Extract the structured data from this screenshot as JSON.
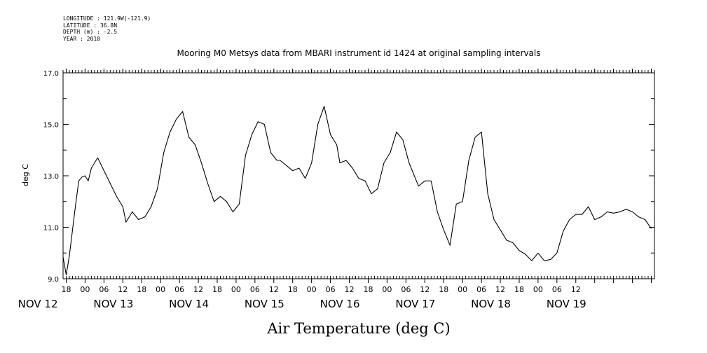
{
  "meta_lines": [
    "LONGITUDE : 121.9W(-121.9)",
    "LATITUDE : 36.8N",
    "DEPTH (m) : -2.5",
    "YEAR : 2010"
  ],
  "chart_data": {
    "type": "line",
    "title": "Mooring M0 Metsys data from MBARI instrument id 1424 at original sampling intervals",
    "xlabel": "Air Temperature (deg C)",
    "ylabel": "deg C",
    "ylim": [
      9.0,
      17.0
    ],
    "yticks": [
      "9.0",
      "11.0",
      "13.0",
      "15.0",
      "17.0"
    ],
    "x_unit": "hours since Nov 12 00:00",
    "xlim": [
      11,
      199
    ],
    "hour_tick_labels": [
      "18",
      "00",
      "06",
      "12",
      "18",
      "00",
      "06",
      "12",
      "18",
      "00",
      "06",
      "12",
      "18",
      "00",
      "06",
      "12",
      "18",
      "00",
      "06",
      "12",
      "18",
      "00",
      "06",
      "12",
      "18",
      "00",
      "06",
      "12"
    ],
    "day_labels": [
      "NOV 12",
      "NOV 13",
      "NOV 14",
      "NOV 15",
      "NOV 16",
      "NOV 17",
      "NOV 18",
      "NOV 19"
    ],
    "grid": false,
    "series": [
      {
        "color": "#000000",
        "x": [
          11,
          12,
          13,
          14,
          15,
          16,
          17,
          18,
          19,
          20,
          21,
          22,
          24,
          26,
          28,
          30,
          31,
          33,
          35,
          37,
          39,
          41,
          43,
          45,
          47,
          49,
          51,
          53,
          55,
          57,
          59,
          61,
          63,
          65,
          67,
          69,
          71,
          73,
          75,
          77,
          79,
          80,
          82,
          84,
          86,
          88,
          90,
          92,
          94,
          96,
          98,
          99,
          101,
          103,
          105,
          107,
          109,
          111,
          113,
          115,
          117,
          119,
          121,
          123,
          124,
          126,
          128,
          130,
          132,
          134,
          136,
          138,
          140,
          142,
          144,
          146,
          148,
          150,
          152,
          154,
          156,
          158,
          160,
          162,
          164,
          166,
          168,
          170,
          172,
          174,
          176,
          178,
          180,
          182,
          184,
          186,
          188,
          190,
          192,
          194,
          196,
          198
        ],
        "y": [
          9.85,
          9.15,
          9.9,
          10.9,
          11.9,
          12.8,
          12.95,
          13.0,
          12.8,
          13.3,
          13.5,
          13.7,
          13.2,
          12.7,
          12.2,
          11.8,
          11.2,
          11.6,
          11.3,
          11.4,
          11.8,
          12.5,
          13.9,
          14.7,
          15.2,
          15.5,
          14.5,
          14.2,
          13.5,
          12.7,
          12.0,
          12.2,
          12.0,
          11.6,
          11.9,
          13.8,
          14.6,
          15.1,
          15.0,
          13.9,
          13.6,
          13.6,
          13.4,
          13.2,
          13.3,
          12.9,
          13.5,
          15.0,
          15.7,
          14.6,
          14.2,
          13.5,
          13.6,
          13.3,
          12.9,
          12.8,
          12.3,
          12.5,
          13.5,
          13.9,
          14.7,
          14.4,
          13.5,
          12.9,
          12.6,
          12.8,
          12.8,
          11.6,
          10.9,
          10.3,
          11.9,
          12.0,
          13.6,
          14.5,
          14.7,
          12.3,
          11.3,
          10.9,
          10.5,
          10.4,
          10.1,
          9.95,
          9.7,
          10.0,
          9.7,
          9.75,
          10.0,
          10.85,
          11.3,
          11.5,
          11.5,
          11.8,
          11.3,
          11.4,
          11.6,
          11.55,
          11.6,
          11.7,
          11.6,
          11.4,
          11.3,
          10.95
        ]
      }
    ]
  }
}
